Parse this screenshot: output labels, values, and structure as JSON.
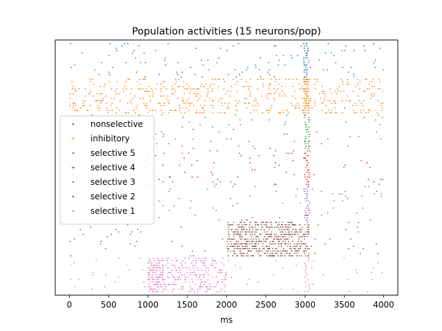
{
  "chart_data": {
    "type": "scatter",
    "title": "Population activities (15 neurons/pop)",
    "xlabel": "ms",
    "ylabel": "",
    "xlim": [
      -180,
      4180
    ],
    "ylim": [
      -1,
      106
    ],
    "x_ticks": [
      0,
      500,
      1000,
      1500,
      2000,
      2500,
      3000,
      3500,
      4000
    ],
    "x_tick_labels": [
      "0",
      "500",
      "1000",
      "1500",
      "2000",
      "2500",
      "3000",
      "3500",
      "4000"
    ],
    "y_ticks_visible": false,
    "grid": false,
    "legend_position": "center-left",
    "series": [
      {
        "name": "nonselective",
        "color": "#1f77b4",
        "neurons": [
          90,
          105
        ],
        "rates": {
          "default": 1.7,
          "windows": [
            {
              "x": [
                2980,
                3050
              ],
              "rate": 40
            }
          ]
        }
      },
      {
        "name": "inhibitory",
        "color": "#ff7f0e",
        "neurons": [
          75,
          90
        ],
        "rates": {
          "default": 9,
          "windows": [
            {
              "x": [
                2980,
                3050
              ],
              "rate": 70
            }
          ]
        }
      },
      {
        "name": "selective 5",
        "color": "#2ca02c",
        "neurons": [
          60,
          75
        ],
        "rates": {
          "default": 1.2,
          "windows": [
            {
              "x": [
                2990,
                3060
              ],
              "rate": 30
            }
          ]
        }
      },
      {
        "name": "selective 4",
        "color": "#d62728",
        "neurons": [
          45,
          60
        ],
        "rates": {
          "default": 1.2,
          "windows": [
            {
              "x": [
                2990,
                3060
              ],
              "rate": 30
            }
          ]
        }
      },
      {
        "name": "selective 3",
        "color": "#9467bd",
        "neurons": [
          30,
          45
        ],
        "rates": {
          "default": 1.2,
          "windows": [
            {
              "x": [
                2990,
                3060
              ],
              "rate": 30
            }
          ]
        }
      },
      {
        "name": "selective 2",
        "color": "#8c564b",
        "neurons": [
          15,
          30
        ],
        "rates": {
          "default": 1.0,
          "windows": [
            {
              "x": [
                2000,
                3050
              ],
              "rate": 38
            }
          ]
        }
      },
      {
        "name": "selective 1",
        "color": "#e377c2",
        "neurons": [
          0,
          15
        ],
        "rates": {
          "default": 1.2,
          "windows": [
            {
              "x": [
                1000,
                1200
              ],
              "rate": 45
            },
            {
              "x": [
                1200,
                2000
              ],
              "rate": 15
            },
            {
              "x": [
                2990,
                3060
              ],
              "rate": 20
            }
          ]
        }
      }
    ]
  }
}
